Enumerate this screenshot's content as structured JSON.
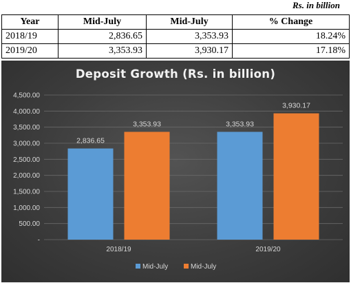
{
  "unit_note": "Rs. in billion",
  "table": {
    "headers": [
      "Year",
      "Mid-July",
      "Mid-July",
      "% Change"
    ],
    "rows": [
      [
        "2018/19",
        "2,836.65",
        "3,353.93",
        "18.24%"
      ],
      [
        "2019/20",
        "3,353.93",
        "3,930.17",
        "17.18%"
      ]
    ]
  },
  "chart_data": {
    "type": "bar",
    "title": "Deposit Growth (Rs. in billion)",
    "categories": [
      "2018/19",
      "2019/20"
    ],
    "series": [
      {
        "name": "Mid-July",
        "values": [
          2836.65,
          3353.93
        ],
        "labels": [
          "2,836.65",
          "3,353.93"
        ],
        "color": "#5b9bd5"
      },
      {
        "name": "Mid-July",
        "values": [
          3353.93,
          3930.17
        ],
        "labels": [
          "3,353.93",
          "3,930.17"
        ],
        "color": "#ed7d31"
      }
    ],
    "ylim": [
      0,
      4500
    ],
    "yticks": [
      "-",
      "500.00",
      "1,000.00",
      "1,500.00",
      "2,000.00",
      "2,500.00",
      "3,000.00",
      "3,500.00",
      "4,000.00",
      "4,500.00"
    ],
    "grid": true,
    "legend": "bottom"
  }
}
